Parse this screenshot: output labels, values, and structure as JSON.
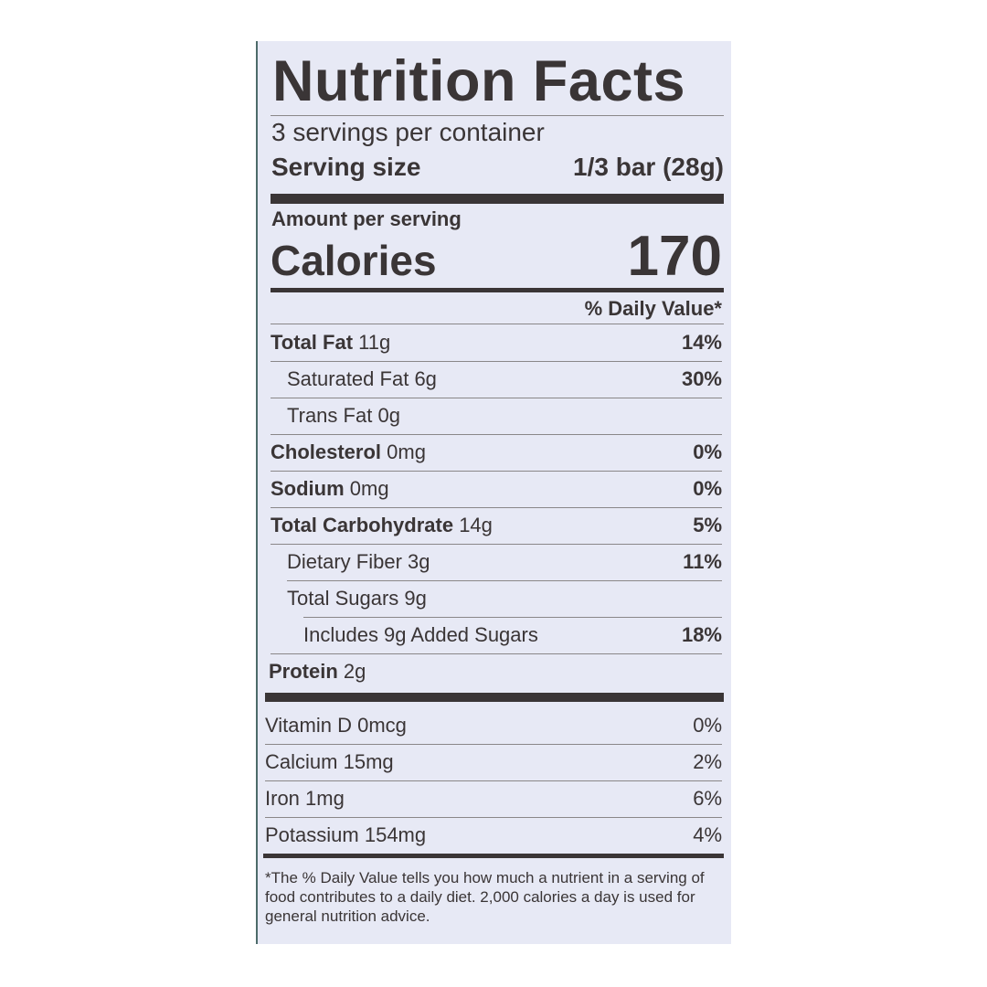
{
  "title": "Nutrition Facts",
  "servings_per_container": "3 servings per container",
  "serving_size": {
    "label": "Serving size",
    "value": "1/3 bar (28g)"
  },
  "amount_per_serving": "Amount per serving",
  "calories": {
    "label": "Calories",
    "value": "170"
  },
  "daily_value_header": "% Daily Value*",
  "nutrients": [
    {
      "name": "Total Fat",
      "amount": "11g",
      "dv": "14%"
    },
    {
      "name": "Saturated Fat",
      "amount": "6g",
      "dv": "30%"
    },
    {
      "name": "Trans Fat",
      "amount": "0g",
      "dv": ""
    },
    {
      "name": "Cholesterol",
      "amount": "0mg",
      "dv": "0%"
    },
    {
      "name": "Sodium",
      "amount": "0mg",
      "dv": "0%"
    },
    {
      "name": "Total Carbohydrate",
      "amount": "14g",
      "dv": "5%"
    },
    {
      "name": "Dietary Fiber",
      "amount": "3g",
      "dv": "11%"
    },
    {
      "name": "Total Sugars",
      "amount": "9g",
      "dv": ""
    },
    {
      "name": "Includes 9g Added Sugars",
      "amount": "",
      "dv": "18%"
    },
    {
      "name": "Protein",
      "amount": "2g",
      "dv": ""
    }
  ],
  "vitamins": [
    {
      "name": "Vitamin D",
      "amount": "0mcg",
      "dv": "0%"
    },
    {
      "name": "Calcium",
      "amount": "15mg",
      "dv": "2%"
    },
    {
      "name": "Iron",
      "amount": "1mg",
      "dv": "6%"
    },
    {
      "name": "Potassium",
      "amount": "154mg",
      "dv": "4%"
    }
  ],
  "footnote": "*The % Daily Value tells you how much a nutrient in a serving of food contributes to a daily diet. 2,000 calories a day is used for general nutrition advice.",
  "colors": {
    "label_background": "#e7e9f5",
    "ink": "#3a3536"
  }
}
